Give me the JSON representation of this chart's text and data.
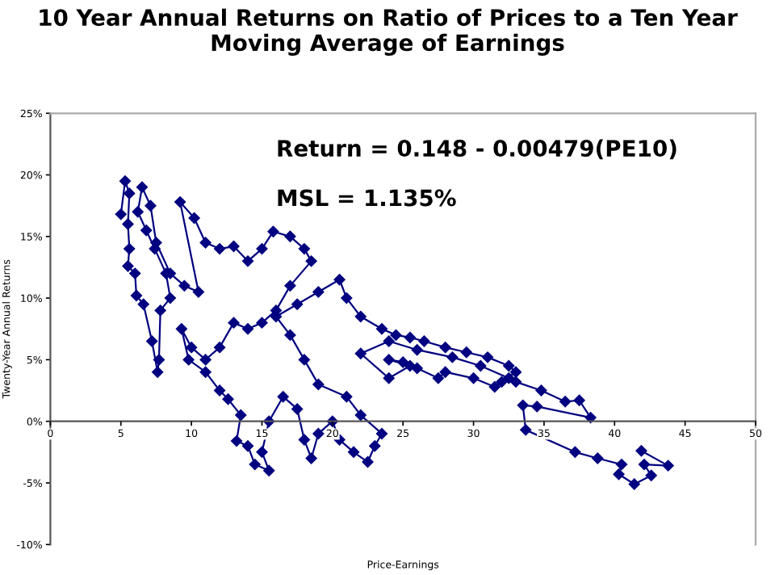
{
  "chart_data": {
    "type": "line",
    "title": "10 Year Annual Returns on Ratio of Prices to a Ten Year\nMoving Average of Earnings",
    "xlabel": "Price-Earnings",
    "ylabel": "Twenty-Year Annual Returns",
    "annotations": [
      "Return = 0.148 - 0.00479(PE10)",
      "MSL = 1.135%"
    ],
    "marker": "diamond",
    "line_style": "solid",
    "grid": false,
    "xlim": [
      0,
      50
    ],
    "xticks": [
      0,
      5,
      10,
      15,
      20,
      25,
      30,
      35,
      40,
      45,
      50
    ],
    "ylim": [
      -10,
      25
    ],
    "yticks": [
      {
        "value": -10,
        "label": "-10%"
      },
      {
        "value": -5,
        "label": "-5%"
      },
      {
        "value": 0,
        "label": "0%"
      },
      {
        "value": 5,
        "label": "5%"
      },
      {
        "value": 10,
        "label": "10%"
      },
      {
        "value": 15,
        "label": "15%"
      },
      {
        "value": 20,
        "label": "20%"
      },
      {
        "value": 25,
        "label": "25%"
      }
    ],
    "series": [
      {
        "color": "#000080",
        "x": [
          5.0,
          5.3,
          5.6,
          5.5,
          5.6,
          5.5,
          6.0,
          6.1,
          6.6,
          7.2,
          7.6,
          7.7,
          7.8,
          8.5,
          8.2,
          7.4,
          6.8,
          6.2,
          6.5,
          7.1,
          7.5,
          8.5,
          9.5,
          10.5,
          9.2,
          10.2,
          11,
          12,
          13,
          14,
          15,
          15.8,
          17,
          18,
          18.5,
          17,
          16,
          15,
          14,
          13,
          12,
          11,
          10,
          9.3,
          9.8,
          11,
          12,
          12.6,
          13.5,
          13.2,
          14,
          14.5,
          15.5,
          15,
          15.5,
          16.5,
          17.5,
          18,
          18.5,
          19,
          20,
          20.5,
          21.5,
          22.5,
          23,
          23.5,
          22,
          21,
          19,
          18,
          17,
          16,
          17.5,
          19,
          20.5,
          21,
          22,
          23.5,
          24.5,
          25.5,
          26.5,
          28,
          29.5,
          31,
          32.5,
          33,
          32,
          31.5,
          30,
          28,
          27.5,
          26,
          25,
          24,
          25.5,
          24,
          22,
          24,
          26,
          28.5,
          30.5,
          32.5,
          33,
          34.8,
          36.5,
          37.5,
          38.3,
          34.5,
          33.5,
          33.7,
          37.2,
          38.8,
          40.5,
          40.3,
          41.4,
          42.6,
          42.1,
          43.8,
          41.9
        ],
        "values": [
          16.8,
          19.5,
          18.5,
          16,
          14,
          12.6,
          12,
          10.2,
          9.5,
          6.5,
          4,
          5,
          9,
          10,
          12,
          14,
          15.5,
          17,
          19,
          17.5,
          14.5,
          12,
          11,
          10.5,
          17.8,
          16.5,
          14.5,
          14,
          14.2,
          13,
          14,
          15.4,
          15,
          14,
          13,
          11,
          9,
          8,
          7.5,
          8,
          6,
          5,
          6,
          7.5,
          5,
          4,
          2.5,
          1.8,
          0.5,
          -1.6,
          -2,
          -3.5,
          -4,
          -2.5,
          0,
          2,
          1,
          -1.5,
          -3,
          -1,
          0,
          -1.5,
          -2.5,
          -3.3,
          -2,
          -1,
          0.5,
          2,
          3,
          5,
          7,
          8.5,
          9.5,
          10.5,
          11.5,
          10,
          8.5,
          7.5,
          7,
          6.8,
          6.5,
          6,
          5.6,
          5.2,
          4.5,
          4,
          3.2,
          2.8,
          3.5,
          4,
          3.5,
          4.3,
          4.8,
          5,
          4.5,
          3.5,
          5.5,
          6.5,
          5.8,
          5.2,
          4.5,
          3.5,
          3.2,
          2.5,
          1.6,
          1.7,
          0.3,
          1.2,
          1.3,
          -0.7,
          -2.5,
          -3,
          -3.5,
          -4.3,
          -5.1,
          -4.4,
          -3.5,
          -3.6,
          -2.4
        ]
      }
    ]
  }
}
